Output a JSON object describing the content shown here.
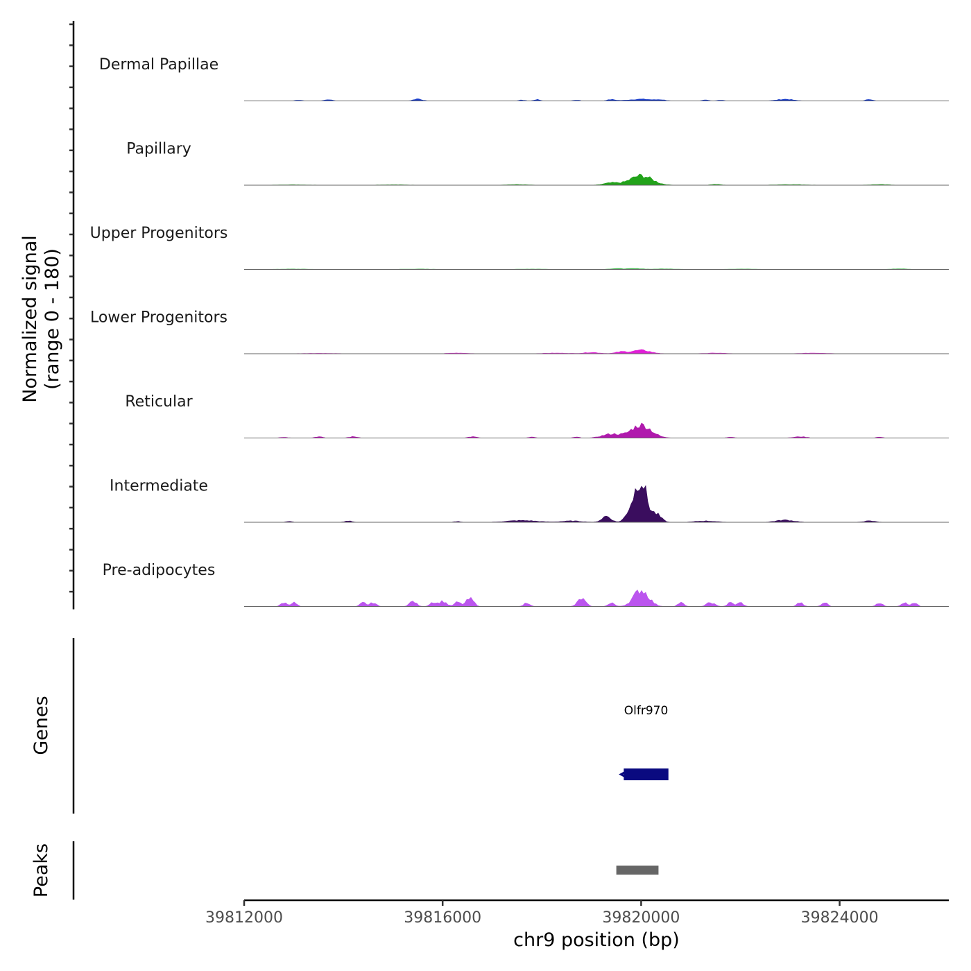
{
  "chart_data": {
    "type": "area",
    "title": "",
    "xlabel": "chr9 position (bp)",
    "ylabel_line1": "Normalized signal",
    "ylabel_line2": "(range 0 - 180)",
    "ylim": [
      0,
      180
    ],
    "xlim": [
      39812000,
      39826200
    ],
    "x_ticks": [
      39812000,
      39816000,
      39820000,
      39824000
    ],
    "x_tick_labels": [
      "39812000",
      "39816000",
      "39820000",
      "39824000"
    ],
    "peak_center": 39820000,
    "tracks": [
      {
        "name": "Dermal Papillae",
        "color": "#1b3fcc",
        "peaks": [
          [
            39813100,
            2,
            60
          ],
          [
            39813700,
            3,
            70
          ],
          [
            39815500,
            5,
            80
          ],
          [
            39817600,
            2,
            60
          ],
          [
            39817900,
            3,
            60
          ],
          [
            39818700,
            2,
            60
          ],
          [
            39819400,
            3,
            80
          ],
          [
            39820000,
            4,
            250
          ],
          [
            39820400,
            2,
            80
          ],
          [
            39821300,
            2,
            60
          ],
          [
            39821600,
            2,
            60
          ],
          [
            39822900,
            4,
            150
          ],
          [
            39824600,
            4,
            60
          ]
        ]
      },
      {
        "name": "Papillary",
        "color": "#22a31a",
        "peaks": [
          [
            39813000,
            1,
            300
          ],
          [
            39815000,
            1,
            300
          ],
          [
            39817500,
            1.5,
            200
          ],
          [
            39819400,
            5,
            150
          ],
          [
            39820000,
            22,
            220
          ],
          [
            39821500,
            2,
            100
          ],
          [
            39823000,
            1.5,
            300
          ],
          [
            39824800,
            1.5,
            200
          ]
        ]
      },
      {
        "name": "Upper Progenitors",
        "color": "#3fb84a",
        "peaks": [
          [
            39813000,
            1,
            300
          ],
          [
            39815500,
            1,
            300
          ],
          [
            39817800,
            1,
            300
          ],
          [
            39819500,
            2,
            150
          ],
          [
            39819900,
            2,
            150
          ],
          [
            39820500,
            1.5,
            200
          ],
          [
            39822000,
            1,
            300
          ],
          [
            39825200,
            1.5,
            150
          ]
        ]
      },
      {
        "name": "Lower Progenitors",
        "color": "#e01fd6",
        "peaks": [
          [
            39813500,
            1,
            300
          ],
          [
            39816300,
            1.5,
            200
          ],
          [
            39818300,
            1.5,
            250
          ],
          [
            39819000,
            3,
            150
          ],
          [
            39819600,
            4,
            120
          ],
          [
            39820000,
            8,
            180
          ],
          [
            39821500,
            1.5,
            200
          ],
          [
            39823500,
            1.5,
            250
          ]
        ]
      },
      {
        "name": "Reticular",
        "color": "#b01aad",
        "peaks": [
          [
            39812800,
            2,
            70
          ],
          [
            39813500,
            3,
            70
          ],
          [
            39814200,
            3,
            80
          ],
          [
            39816600,
            3,
            80
          ],
          [
            39817800,
            2,
            60
          ],
          [
            39818700,
            2,
            60
          ],
          [
            39819400,
            9,
            180
          ],
          [
            39820000,
            30,
            200
          ],
          [
            39821800,
            2,
            70
          ],
          [
            39823200,
            3,
            120
          ],
          [
            39824800,
            2,
            60
          ]
        ]
      },
      {
        "name": "Intermediate",
        "color": "#3a0d5e",
        "peaks": [
          [
            39812900,
            2,
            60
          ],
          [
            39814100,
            3,
            70
          ],
          [
            39816300,
            2,
            60
          ],
          [
            39817600,
            4,
            300
          ],
          [
            39818600,
            3,
            200
          ],
          [
            39819300,
            14,
            90
          ],
          [
            39819800,
            28,
            100
          ],
          [
            39820000,
            95,
            110
          ],
          [
            39820300,
            18,
            100
          ],
          [
            39821300,
            3,
            200
          ],
          [
            39822900,
            5,
            180
          ],
          [
            39824600,
            3,
            120
          ]
        ]
      },
      {
        "name": "Pre-adipocytes",
        "color": "#bb55ee",
        "peaks": [
          [
            39812800,
            9,
            60
          ],
          [
            39813000,
            9,
            60
          ],
          [
            39814400,
            9,
            60
          ],
          [
            39814600,
            9,
            60
          ],
          [
            39815400,
            12,
            70
          ],
          [
            39815800,
            10,
            60
          ],
          [
            39816000,
            12,
            80
          ],
          [
            39816300,
            10,
            60
          ],
          [
            39816550,
            18,
            80
          ],
          [
            39817700,
            9,
            60
          ],
          [
            39818800,
            18,
            80
          ],
          [
            39819400,
            9,
            60
          ],
          [
            39820000,
            38,
            150
          ],
          [
            39820800,
            9,
            60
          ],
          [
            39821400,
            9,
            80
          ],
          [
            39821800,
            9,
            60
          ],
          [
            39822000,
            9,
            60
          ],
          [
            39823200,
            9,
            60
          ],
          [
            39823700,
            9,
            60
          ],
          [
            39824800,
            9,
            60
          ],
          [
            39825300,
            9,
            60
          ],
          [
            39825500,
            9,
            60
          ]
        ]
      }
    ],
    "genes_label": "Genes",
    "genes": [
      {
        "name": "Olfr970",
        "start": 39819650,
        "end": 39820550,
        "strand": "-",
        "color": "#0a0a80"
      }
    ],
    "peaks_label": "Peaks",
    "peak_regions": [
      {
        "start": 39819500,
        "end": 39820350,
        "color": "#666666"
      }
    ]
  }
}
